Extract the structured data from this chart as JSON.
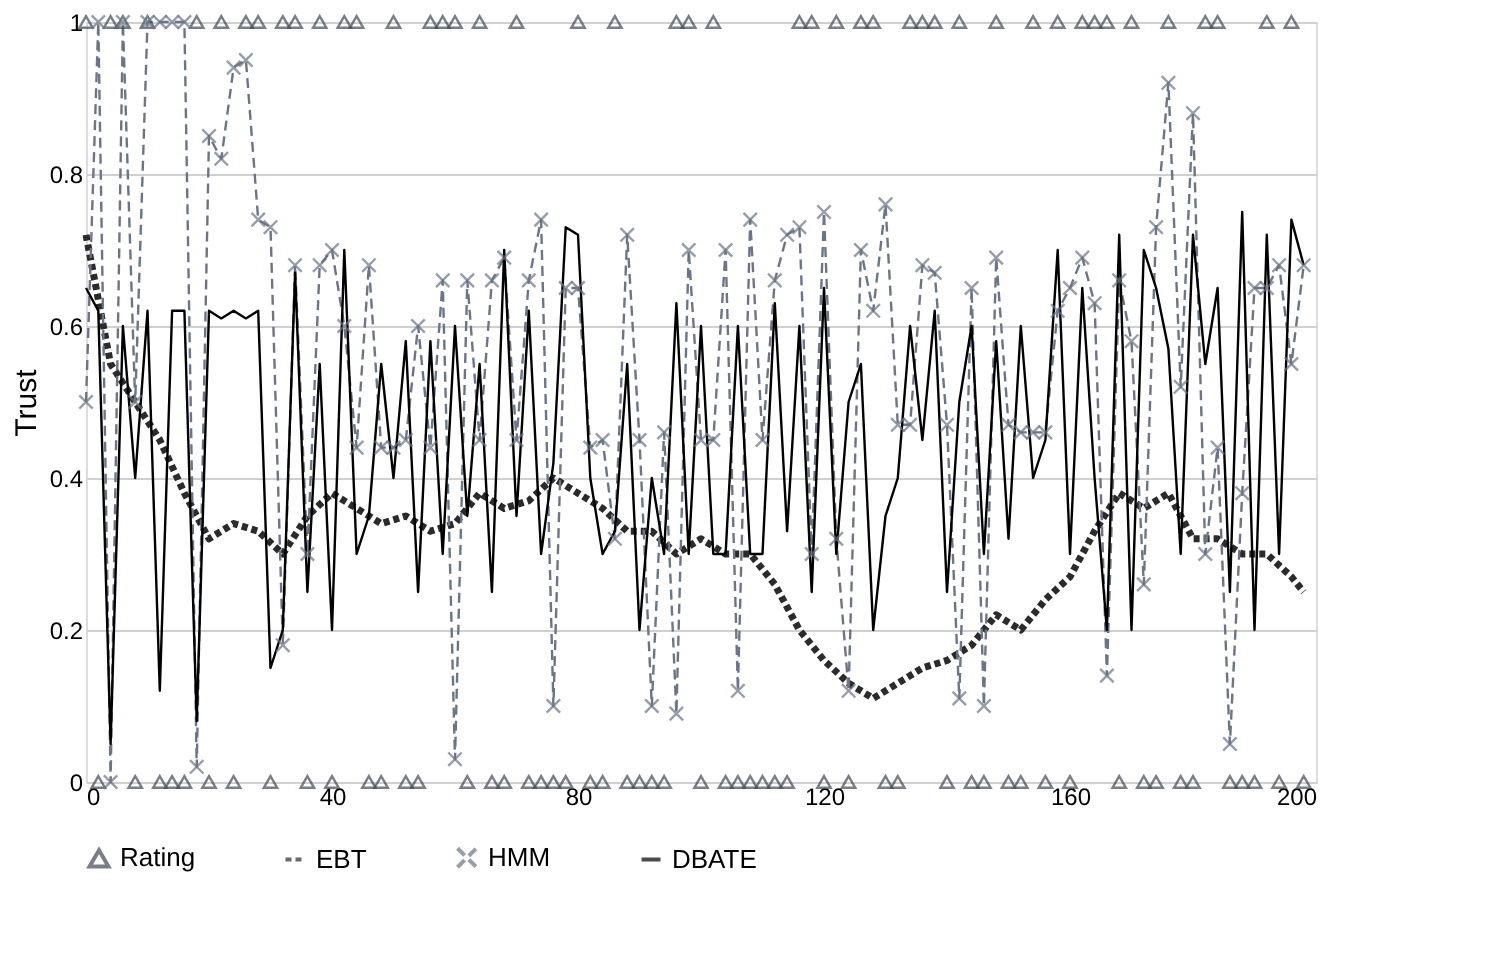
{
  "chart_data": {
    "type": "line",
    "ylabel": "Trust",
    "xlim": [
      0,
      200
    ],
    "xticks": [
      0,
      40,
      80,
      120,
      160,
      200
    ],
    "ylim": [
      0,
      1
    ],
    "yticks": [
      0,
      0.2,
      0.4,
      0.6,
      0.8,
      1
    ],
    "grid": "y",
    "legend": "bottom",
    "x": [
      0,
      2,
      4,
      6,
      8,
      10,
      12,
      14,
      16,
      18,
      20,
      22,
      24,
      26,
      28,
      30,
      32,
      34,
      36,
      38,
      40,
      42,
      44,
      46,
      48,
      50,
      52,
      54,
      56,
      58,
      60,
      62,
      64,
      66,
      68,
      70,
      72,
      74,
      76,
      78,
      80,
      82,
      84,
      86,
      88,
      90,
      92,
      94,
      96,
      98,
      100,
      102,
      104,
      106,
      108,
      110,
      112,
      114,
      116,
      118,
      120,
      122,
      124,
      126,
      128,
      130,
      132,
      134,
      136,
      138,
      140,
      142,
      144,
      146,
      148,
      150,
      152,
      154,
      156,
      158,
      160,
      162,
      164,
      166,
      168,
      170,
      172,
      174,
      176,
      178,
      180,
      182,
      184,
      186,
      188,
      190,
      192,
      194,
      196,
      198
    ],
    "series": [
      {
        "name": "Rating",
        "type": "scatter",
        "marker": "triangle",
        "color": "#404a56",
        "values": [
          1,
          0,
          1,
          1,
          0,
          1,
          0,
          0,
          0,
          1,
          0,
          1,
          0,
          1,
          1,
          0,
          1,
          1,
          0,
          1,
          0,
          1,
          1,
          0,
          0,
          1,
          0,
          0,
          1,
          1,
          1,
          0,
          1,
          0,
          0,
          1,
          0,
          0,
          0,
          0,
          1,
          0,
          0,
          1,
          0,
          0,
          0,
          0,
          1,
          1,
          0,
          1,
          0,
          0,
          0,
          0,
          0,
          0,
          1,
          1,
          0,
          1,
          0,
          1,
          1,
          0,
          0,
          1,
          1,
          1,
          0,
          1,
          0,
          0,
          1,
          0,
          0,
          1,
          0,
          1,
          0,
          1,
          1,
          1,
          0,
          1,
          0,
          0,
          1,
          0,
          0,
          1,
          1,
          0,
          0,
          0,
          1,
          0,
          1,
          0
        ]
      },
      {
        "name": "EBT",
        "line_style": "dotted",
        "marker": "none",
        "color": "#2b2b2b",
        "x": [
          0,
          4,
          8,
          12,
          16,
          20,
          24,
          28,
          32,
          36,
          40,
          44,
          48,
          52,
          56,
          60,
          64,
          68,
          72,
          76,
          80,
          84,
          88,
          92,
          96,
          100,
          104,
          108,
          112,
          116,
          120,
          124,
          128,
          132,
          136,
          140,
          144,
          148,
          152,
          156,
          160,
          164,
          168,
          172,
          176,
          180,
          184,
          188,
          192,
          196,
          198
        ],
        "values": [
          0.72,
          0.55,
          0.5,
          0.45,
          0.38,
          0.32,
          0.34,
          0.33,
          0.3,
          0.35,
          0.38,
          0.36,
          0.34,
          0.35,
          0.33,
          0.34,
          0.38,
          0.36,
          0.37,
          0.4,
          0.38,
          0.36,
          0.33,
          0.33,
          0.3,
          0.32,
          0.3,
          0.3,
          0.26,
          0.2,
          0.16,
          0.13,
          0.11,
          0.13,
          0.15,
          0.16,
          0.18,
          0.22,
          0.2,
          0.24,
          0.27,
          0.33,
          0.38,
          0.36,
          0.38,
          0.32,
          0.32,
          0.3,
          0.3,
          0.27,
          0.25
        ]
      },
      {
        "name": "HMM",
        "line_style": "dashed",
        "marker": "cross",
        "color": "#6a7688",
        "values": [
          0.5,
          1,
          0,
          1,
          0.5,
          1,
          1,
          1,
          1,
          0.02,
          0.85,
          0.82,
          0.94,
          0.95,
          0.74,
          0.73,
          0.18,
          0.68,
          0.3,
          0.68,
          0.7,
          0.6,
          0.44,
          0.68,
          0.44,
          0.44,
          0.45,
          0.6,
          0.44,
          0.66,
          0.03,
          0.66,
          0.45,
          0.66,
          0.69,
          0.45,
          0.66,
          0.74,
          0.1,
          0.65,
          0.65,
          0.44,
          0.45,
          0.32,
          0.72,
          0.45,
          0.1,
          0.46,
          0.09,
          0.7,
          0.45,
          0.45,
          0.7,
          0.12,
          0.74,
          0.45,
          0.66,
          0.72,
          0.73,
          0.3,
          0.75,
          0.32,
          0.12,
          0.7,
          0.62,
          0.76,
          0.47,
          0.47,
          0.68,
          0.67,
          0.47,
          0.11,
          0.65,
          0.1,
          0.69,
          0.47,
          0.46,
          0.46,
          0.46,
          0.62,
          0.65,
          0.69,
          0.63,
          0.14,
          0.66,
          0.58,
          0.26,
          0.73,
          0.92,
          0.52,
          0.88,
          0.3,
          0.44,
          0.05,
          0.38,
          0.65,
          0.65,
          0.68,
          0.55,
          0.68
        ]
      },
      {
        "name": "DBATE",
        "line_style": "solid",
        "marker": "none",
        "color": "#000000",
        "values": [
          0.65,
          0.62,
          0.05,
          0.6,
          0.4,
          0.62,
          0.12,
          0.62,
          0.62,
          0.08,
          0.62,
          0.61,
          0.62,
          0.61,
          0.62,
          0.15,
          0.2,
          0.67,
          0.25,
          0.55,
          0.2,
          0.7,
          0.3,
          0.35,
          0.55,
          0.4,
          0.58,
          0.25,
          0.58,
          0.3,
          0.6,
          0.35,
          0.55,
          0.25,
          0.7,
          0.35,
          0.62,
          0.3,
          0.42,
          0.73,
          0.72,
          0.4,
          0.3,
          0.33,
          0.55,
          0.2,
          0.4,
          0.3,
          0.63,
          0.3,
          0.6,
          0.3,
          0.3,
          0.6,
          0.3,
          0.3,
          0.63,
          0.33,
          0.6,
          0.25,
          0.65,
          0.3,
          0.5,
          0.55,
          0.2,
          0.35,
          0.4,
          0.6,
          0.45,
          0.62,
          0.25,
          0.5,
          0.6,
          0.3,
          0.58,
          0.32,
          0.6,
          0.4,
          0.45,
          0.7,
          0.3,
          0.65,
          0.4,
          0.2,
          0.72,
          0.2,
          0.7,
          0.65,
          0.57,
          0.3,
          0.72,
          0.55,
          0.65,
          0.25,
          0.75,
          0.2,
          0.72,
          0.3,
          0.74,
          0.68
        ]
      }
    ]
  }
}
